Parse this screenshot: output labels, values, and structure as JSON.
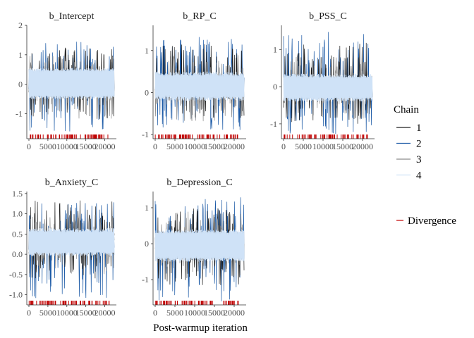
{
  "figure": {
    "xlabel": "Post-warmup iteration"
  },
  "legend": {
    "title": "Chain",
    "chains": [
      {
        "label": "1",
        "color": "#1f1f1f"
      },
      {
        "label": "2",
        "color": "#1c5aa6"
      },
      {
        "label": "3",
        "color": "#8c8c8c"
      },
      {
        "label": "4",
        "color": "#cfe2f7"
      }
    ],
    "divergence_label": "Divergence",
    "divergence_color": "#c00000"
  },
  "chart_data": [
    {
      "type": "line",
      "title": "b_Intercept",
      "xlim": [
        0,
        22500
      ],
      "ylim": [
        -1.85,
        2.0
      ],
      "xticks": [
        0,
        5000,
        10000,
        15000,
        20000
      ],
      "xtick_labels": [
        "0",
        "5000",
        "10000",
        "15000",
        "20000"
      ],
      "yticks": [
        -1,
        0,
        1,
        2
      ],
      "ytick_labels": [
        "-1",
        "0",
        "1",
        "2"
      ],
      "center": 0.1,
      "band_low": -0.45,
      "band_high": 0.5,
      "series": [
        {
          "name": "1",
          "spike_max": 1.3,
          "spike_min": -1.2
        },
        {
          "name": "2",
          "spike_max": 1.45,
          "spike_min": -1.7
        },
        {
          "name": "3",
          "spike_max": 1.0,
          "spike_min": -1.3
        },
        {
          "name": "4",
          "spike_max": 0.7,
          "spike_min": -0.7
        }
      ]
    },
    {
      "type": "line",
      "title": "b_RP_C",
      "xlim": [
        0,
        22500
      ],
      "ylim": [
        -1.1,
        1.6
      ],
      "xticks": [
        0,
        5000,
        10000,
        15000,
        20000
      ],
      "xtick_labels": [
        "0",
        "5000",
        "10000",
        "15000",
        "20000"
      ],
      "yticks": [
        -1,
        0,
        1
      ],
      "ytick_labels": [
        "-1",
        "0",
        "1"
      ],
      "center": 0.15,
      "band_low": -0.15,
      "band_high": 0.45,
      "series": [
        {
          "name": "1",
          "spike_max": 1.2,
          "spike_min": -0.6
        },
        {
          "name": "2",
          "spike_max": 1.35,
          "spike_min": -0.9
        },
        {
          "name": "3",
          "spike_max": 0.9,
          "spike_min": -0.7
        },
        {
          "name": "4",
          "spike_max": 0.7,
          "spike_min": -1.0
        }
      ]
    },
    {
      "type": "line",
      "title": "b_PSS_C",
      "xlim": [
        0,
        22500
      ],
      "ylim": [
        -1.4,
        1.65
      ],
      "xticks": [
        0,
        5000,
        10000,
        15000,
        20000
      ],
      "xtick_labels": [
        "0",
        "5000",
        "10000",
        "15000",
        "20000"
      ],
      "yticks": [
        -1,
        0,
        1
      ],
      "ytick_labels": [
        "-1",
        "0",
        "1"
      ],
      "center": -0.05,
      "band_low": -0.35,
      "band_high": 0.3,
      "series": [
        {
          "name": "1",
          "spike_max": 1.2,
          "spike_min": -1.0
        },
        {
          "name": "2",
          "spike_max": 1.5,
          "spike_min": -1.3
        },
        {
          "name": "3",
          "spike_max": 0.8,
          "spike_min": -0.9
        },
        {
          "name": "4",
          "spike_max": 0.6,
          "spike_min": -0.8
        }
      ]
    },
    {
      "type": "line",
      "title": "b_Anxiety_C",
      "xlim": [
        0,
        22500
      ],
      "ylim": [
        -1.25,
        1.55
      ],
      "xticks": [
        0,
        5000,
        10000,
        15000,
        20000
      ],
      "xtick_labels": [
        "0",
        "5000",
        "10000",
        "15000",
        "20000"
      ],
      "yticks": [
        -1.0,
        -0.5,
        0.0,
        0.5,
        1.0,
        1.5
      ],
      "ytick_labels": [
        "-1.0",
        "-0.5",
        "0.0",
        "0.5",
        "1.0",
        "1.5"
      ],
      "center": 0.3,
      "band_low": 0.0,
      "band_high": 0.6,
      "series": [
        {
          "name": "1",
          "spike_max": 1.35,
          "spike_min": -0.6
        },
        {
          "name": "2",
          "spike_max": 1.3,
          "spike_min": -1.1
        },
        {
          "name": "3",
          "spike_max": 1.0,
          "spike_min": -0.5
        },
        {
          "name": "4",
          "spike_max": 0.8,
          "spike_min": -0.3
        }
      ]
    },
    {
      "type": "line",
      "title": "b_Depression_C",
      "xlim": [
        0,
        22500
      ],
      "ylim": [
        -1.7,
        1.45
      ],
      "xticks": [
        0,
        5000,
        10000,
        15000,
        20000
      ],
      "xtick_labels": [
        "0",
        "5000",
        "10000",
        "15000",
        "20000"
      ],
      "yticks": [
        -1,
        0,
        1
      ],
      "ytick_labels": [
        "-1",
        "0",
        "1"
      ],
      "center": -0.05,
      "band_low": -0.45,
      "band_high": 0.35,
      "series": [
        {
          "name": "1",
          "spike_max": 1.0,
          "spike_min": -1.2
        },
        {
          "name": "2",
          "spike_max": 1.3,
          "spike_min": -1.6
        },
        {
          "name": "3",
          "spike_max": 0.9,
          "spike_min": -1.0
        },
        {
          "name": "4",
          "spike_max": 0.6,
          "spike_min": -0.8
        }
      ]
    }
  ]
}
